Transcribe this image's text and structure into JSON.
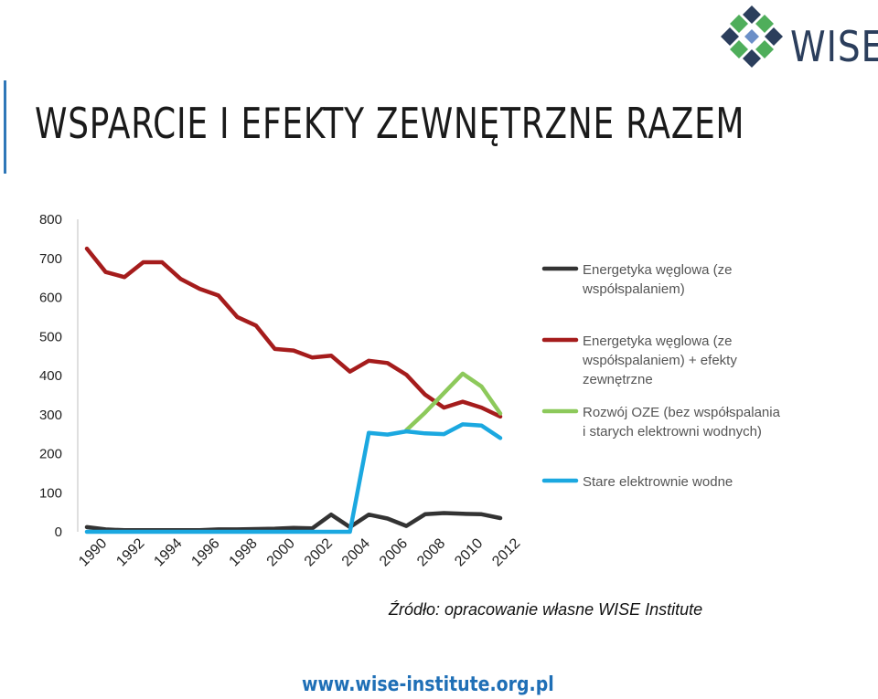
{
  "page": {
    "title": "WSPARCIE I EFEKTY ZEWNĘTRZNE RAZEM",
    "logo_text": "WISE",
    "source": "Źródło: opracowanie własne WISE Institute",
    "website": "www.wise-institute.org.pl"
  },
  "colors": {
    "accent_rule": "#2f77b8",
    "logo_blue": "#2b3e5c",
    "logo_green": "#4fae5b",
    "website": "#1f6fb6"
  },
  "chart_data": {
    "type": "line",
    "title": "",
    "xlabel": "",
    "ylabel": "",
    "ylim": [
      0,
      800
    ],
    "yticks": [
      0,
      100,
      200,
      300,
      400,
      500,
      600,
      700,
      800
    ],
    "x": [
      1990,
      1991,
      1992,
      1993,
      1994,
      1995,
      1996,
      1997,
      1998,
      1999,
      2000,
      2001,
      2002,
      2003,
      2004,
      2005,
      2006,
      2007,
      2008,
      2009,
      2010,
      2011,
      2012
    ],
    "xticks": [
      1990,
      1992,
      1994,
      1996,
      1998,
      2000,
      2002,
      2004,
      2006,
      2008,
      2010,
      2012
    ],
    "grid": false,
    "legend_position": "right",
    "series": [
      {
        "name": "Energetyka węglowa (ze współspalaniem)",
        "legend_lines": [
          "Energetyka węglowa (ze",
          "współspalaniem)"
        ],
        "color": "#333333",
        "values": [
          12,
          6,
          4,
          4,
          4,
          4,
          4,
          6,
          6,
          7,
          8,
          10,
          9,
          44,
          12,
          44,
          34,
          15,
          45,
          48,
          46,
          45,
          35
        ]
      },
      {
        "name": "Energetyka węglowa (ze współspalaniem) + efekty zewnętrzne",
        "legend_lines": [
          "Energetyka węglowa (ze",
          "współspalaniem) + efekty",
          "zewnętrzne"
        ],
        "color": "#a51c1c",
        "values": [
          725,
          665,
          652,
          690,
          690,
          647,
          622,
          605,
          550,
          528,
          468,
          464,
          446,
          451,
          410,
          438,
          432,
          402,
          351,
          318,
          333,
          318,
          295
        ]
      },
      {
        "name": "Rozwój OZE (bez współspalania i starych elektrowni wodnych)",
        "legend_lines": [
          "Rozwój OZE (bez współspalania",
          "i starych elektrowni wodnych)"
        ],
        "color": "#8dc95b",
        "values": [
          null,
          null,
          null,
          null,
          null,
          null,
          null,
          null,
          null,
          null,
          null,
          null,
          null,
          null,
          null,
          null,
          null,
          260,
          305,
          355,
          405,
          372,
          303
        ]
      },
      {
        "name": "Stare elektrownie wodne",
        "legend_lines": [
          "Stare elektrownie wodne"
        ],
        "color": "#1ba8e0",
        "values": [
          0,
          0,
          0,
          0,
          0,
          0,
          0,
          0,
          0,
          0,
          0,
          0,
          0,
          0,
          0,
          253,
          249,
          257,
          252,
          250,
          275,
          272,
          240
        ]
      }
    ]
  }
}
